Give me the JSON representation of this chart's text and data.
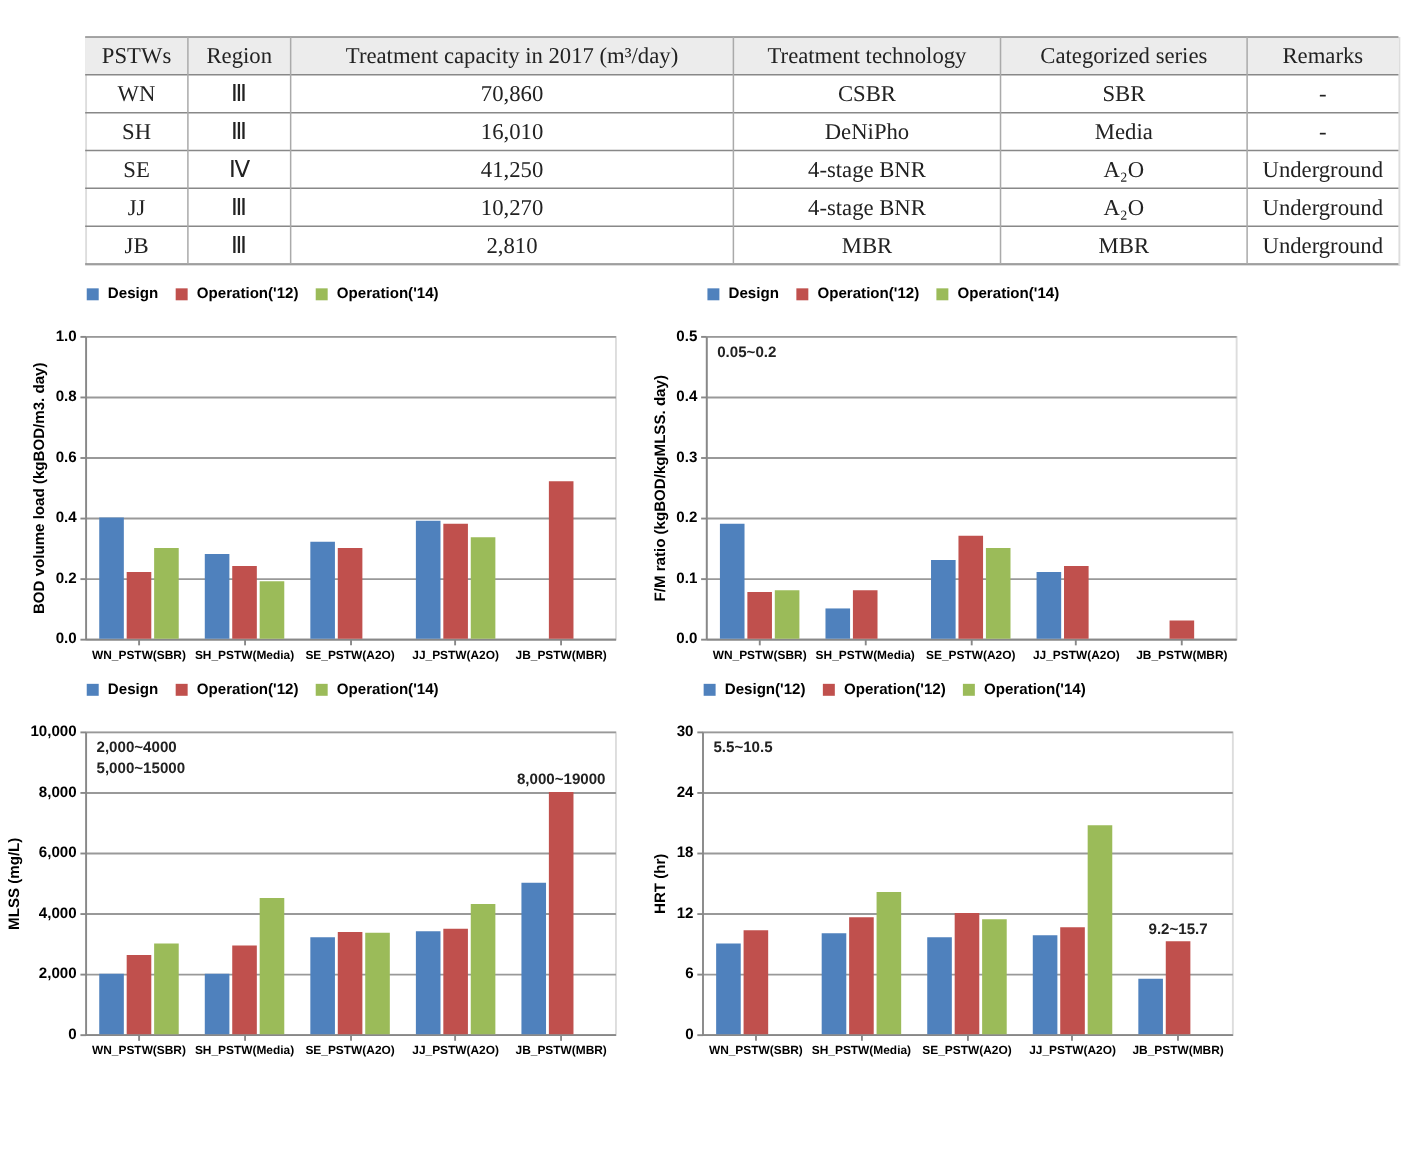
{
  "chart_data": [
    {
      "type": "other",
      "categories": [
        "PSTWs",
        "Region",
        "Treatment capacity in 2017 (m³/day)",
        "Treatment technology",
        "Categorized series",
        "Remarks"
      ],
      "cell_labels": [
        [
          "WN",
          "Ⅲ",
          "70,860",
          "CSBR",
          "SBR",
          "-"
        ],
        [
          "SH",
          "Ⅲ",
          "16,010",
          "DeNiPho",
          "Media",
          "-"
        ],
        [
          "SE",
          "Ⅳ",
          "41,250",
          "4-stage BNR",
          "A₂O",
          "Underground"
        ],
        [
          "JJ",
          "Ⅲ",
          "10,270",
          "4-stage BNR",
          "A₂O",
          "Underground"
        ],
        [
          "JB",
          "Ⅲ",
          "2,810",
          "MBR",
          "MBR",
          "Underground"
        ]
      ]
    },
    {
      "type": "bar",
      "categories": [
        "WN_PSTW(SBR)",
        "SH_PSTW(Media)",
        "SE_PSTW(A2O)",
        "JJ_PSTW(A2O)",
        "JB_PSTW(MBR)"
      ],
      "ylabel": "BOD volume load (kgBOD/m3. day)",
      "ylim": [
        0,
        1.0
      ],
      "yticks": [
        {
          "value": 0,
          "label": "0.0"
        },
        0.2,
        0.4,
        0.6,
        0.8,
        {
          "value": 1,
          "label": "1.0"
        }
      ],
      "grid": "y",
      "legend": "top",
      "series": [
        {
          "name": "Design",
          "color": "#4f81bd",
          "values": [
            0.4,
            0.28,
            0.32,
            0.39,
            null
          ]
        },
        {
          "name": "Operation('12)",
          "color": "#c0504d",
          "values": [
            0.22,
            0.24,
            0.3,
            0.38,
            0.52
          ]
        },
        {
          "name": "Operation('14)",
          "color": "#9bbb59",
          "values": [
            0.3,
            0.19,
            null,
            0.335,
            null
          ]
        }
      ]
    },
    {
      "type": "bar",
      "categories": [
        "WN_PSTW(SBR)",
        "SH_PSTW(Media)",
        "SE_PSTW(A2O)",
        "JJ_PSTW(A2O)",
        "JB_PSTW(MBR)"
      ],
      "ylabel": "F/M ratio (kgBOD/kgMLSS. day)",
      "ylim": [
        0,
        0.5
      ],
      "yticks": [
        {
          "value": 0,
          "label": "0.0"
        },
        0.1,
        0.2,
        0.3,
        0.4,
        0.5
      ],
      "grid": "y",
      "legend": "top",
      "series": [
        {
          "name": "Design",
          "color": "#4f81bd",
          "values": [
            0.19,
            0.05,
            0.13,
            0.11,
            null
          ]
        },
        {
          "name": "Operation('12)",
          "color": "#c0504d",
          "values": [
            0.077,
            0.08,
            0.17,
            0.12,
            0.03
          ]
        },
        {
          "name": "Operation('14)",
          "color": "#9bbb59",
          "values": [
            0.08,
            null,
            0.15,
            null,
            null
          ]
        }
      ],
      "annotations": [
        "0.05~0.2"
      ]
    },
    {
      "type": "bar",
      "categories": [
        "WN_PSTW(SBR)",
        "SH_PSTW(Media)",
        "SE_PSTW(A2O)",
        "JJ_PSTW(A2O)",
        "JB_PSTW(MBR)"
      ],
      "ylabel": "MLSS (mg/L)",
      "ylim": [
        0,
        10000
      ],
      "yticks": [
        0,
        {
          "value": 2000,
          "label": "2,000"
        },
        {
          "value": 4000,
          "label": "4,000"
        },
        {
          "value": 6000,
          "label": "6,000"
        },
        {
          "value": 8000,
          "label": "8,000"
        },
        {
          "value": 10000,
          "label": "10,000"
        }
      ],
      "grid": "y",
      "legend": "top",
      "series": [
        {
          "name": "Design",
          "color": "#4f81bd",
          "values": [
            2000,
            2000,
            3200,
            3400,
            5000
          ]
        },
        {
          "name": "Operation('12)",
          "color": "#c0504d",
          "values": [
            2620,
            2930,
            3380,
            3480,
            8000
          ]
        },
        {
          "name": "Operation('14)",
          "color": "#9bbb59",
          "values": [
            3000,
            4500,
            3350,
            4300,
            null
          ]
        }
      ],
      "annotations": [
        "2,000~4000",
        "5,000~15000",
        {
          "text": "8,000~19000",
          "x": "JB_PSTW(MBR)",
          "y": 8000
        }
      ]
    },
    {
      "type": "bar",
      "categories": [
        "WN_PSTW(SBR)",
        "SH_PSTW(Media)",
        "SE_PSTW(A2O)",
        "JJ_PSTW(A2O)",
        "JB_PSTW(MBR)"
      ],
      "ylabel": "HRT (hr)",
      "ylim": [
        0,
        30
      ],
      "yticks": [
        0,
        6,
        12,
        18,
        24,
        30
      ],
      "grid": "y",
      "legend": "top",
      "series": [
        {
          "name": "Design('12)",
          "color": "#4f81bd",
          "values": [
            9.0,
            10.0,
            9.6,
            9.8,
            5.5
          ]
        },
        {
          "name": "Operation('12)",
          "color": "#c0504d",
          "values": [
            10.3,
            11.6,
            12.0,
            10.6,
            9.2
          ]
        },
        {
          "name": "Operation('14)",
          "color": "#9bbb59",
          "values": [
            null,
            14.1,
            11.4,
            20.7,
            null
          ]
        }
      ],
      "annotations": [
        "5.5~10.5",
        {
          "text": "9.2~15.7",
          "x": "JB_PSTW(MBR)",
          "y": 9.2
        }
      ]
    }
  ]
}
